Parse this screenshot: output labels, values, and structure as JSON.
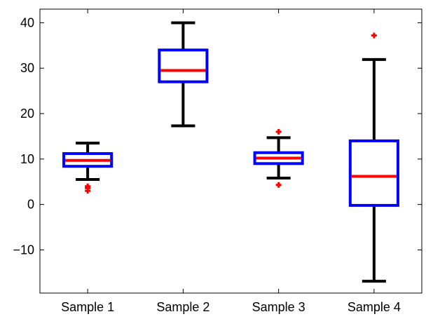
{
  "chart_data": {
    "type": "box",
    "title": "",
    "xlabel": "",
    "ylabel": "",
    "ylim": [
      -19.5,
      43
    ],
    "yticks": [
      -10,
      0,
      10,
      20,
      30,
      40
    ],
    "grid": false,
    "legend": "none",
    "categories": [
      "Sample 1",
      "Sample 2",
      "Sample 3",
      "Sample 4"
    ],
    "boxes": [
      {
        "name": "Sample 1",
        "whisker_low": 5.5,
        "q1": 8.4,
        "median": 9.7,
        "q3": 11.2,
        "whisker_high": 13.5,
        "outliers": [
          3.0,
          3.6,
          4.0
        ]
      },
      {
        "name": "Sample 2",
        "whisker_low": 17.3,
        "q1": 27.0,
        "median": 29.5,
        "q3": 34.0,
        "whisker_high": 40.0,
        "outliers": []
      },
      {
        "name": "Sample 3",
        "whisker_low": 5.8,
        "q1": 9.0,
        "median": 10.2,
        "q3": 11.4,
        "whisker_high": 14.7,
        "outliers": [
          4.3,
          16.0
        ]
      },
      {
        "name": "Sample 4",
        "whisker_low": -16.9,
        "q1": -0.2,
        "median": 6.2,
        "q3": 14.0,
        "whisker_high": 31.9,
        "outliers": [
          37.2
        ]
      }
    ],
    "colors": {
      "box": "#0000ff",
      "median": "#ff0000",
      "whisker": "#000000",
      "outlier": "#ff0000",
      "axes": "#000000"
    }
  }
}
